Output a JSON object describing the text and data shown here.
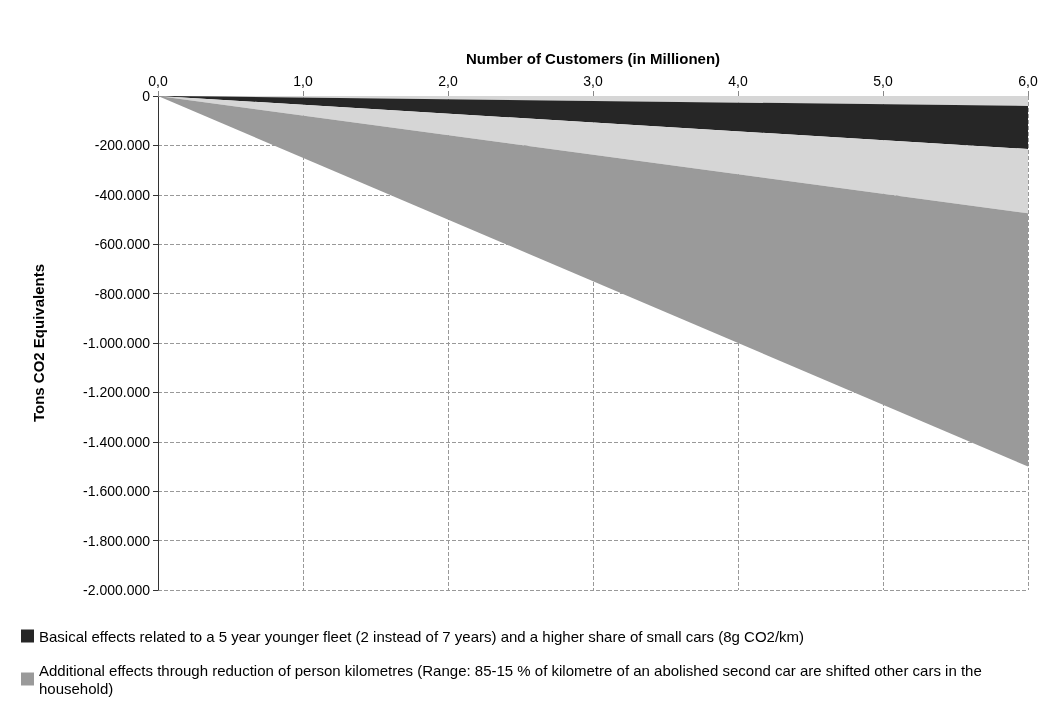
{
  "chart_data": {
    "type": "area",
    "stacked": true,
    "xlabel": "Number of Customers (in Millionen)",
    "ylabel": "Tons CO2 Equivalents",
    "x": [
      0,
      6
    ],
    "series": [
      {
        "color": "#d6d6d6",
        "values": [
          0,
          -40000
        ]
      },
      {
        "name": "Basical effects related to a 5 year younger fleet (2 instead of 7 years) and a higher share of small cars (8g CO2/km)",
        "color": "#262626",
        "values": [
          0,
          -175000
        ]
      },
      {
        "color": "#d6d6d6",
        "values": [
          0,
          -260000
        ]
      },
      {
        "name": "Additional effects through reduction of person kilometres (Range: 85-15 % of kilometre of an abolished second car are shifted other cars in the household)",
        "color": "#9a9a9a",
        "values": [
          0,
          -1025000
        ]
      }
    ],
    "xlim": [
      0,
      6
    ],
    "xticks": [
      {
        "value": 0,
        "label": "0,0"
      },
      {
        "value": 1,
        "label": "1,0"
      },
      {
        "value": 2,
        "label": "2,0"
      },
      {
        "value": 3,
        "label": "3,0"
      },
      {
        "value": 4,
        "label": "4,0"
      },
      {
        "value": 5,
        "label": "5,0"
      },
      {
        "value": 6,
        "label": "6,0"
      }
    ],
    "ylim": [
      -2000000,
      0
    ],
    "yticks": [
      {
        "value": 0,
        "label": "0"
      },
      {
        "value": -200000,
        "label": "-200.000"
      },
      {
        "value": -400000,
        "label": "-400.000"
      },
      {
        "value": -600000,
        "label": "-600.000"
      },
      {
        "value": -800000,
        "label": "-800.000"
      },
      {
        "value": -1000000,
        "label": "-1.000.000"
      },
      {
        "value": -1200000,
        "label": "-1.200.000"
      },
      {
        "value": -1400000,
        "label": "-1.400.000"
      },
      {
        "value": -1600000,
        "label": "-1.600.000"
      },
      {
        "value": -1800000,
        "label": "-1.800.000"
      },
      {
        "value": -2000000,
        "label": "-2.000.000"
      }
    ],
    "grid": true,
    "legend": "bottom",
    "line_style": "dashed"
  }
}
